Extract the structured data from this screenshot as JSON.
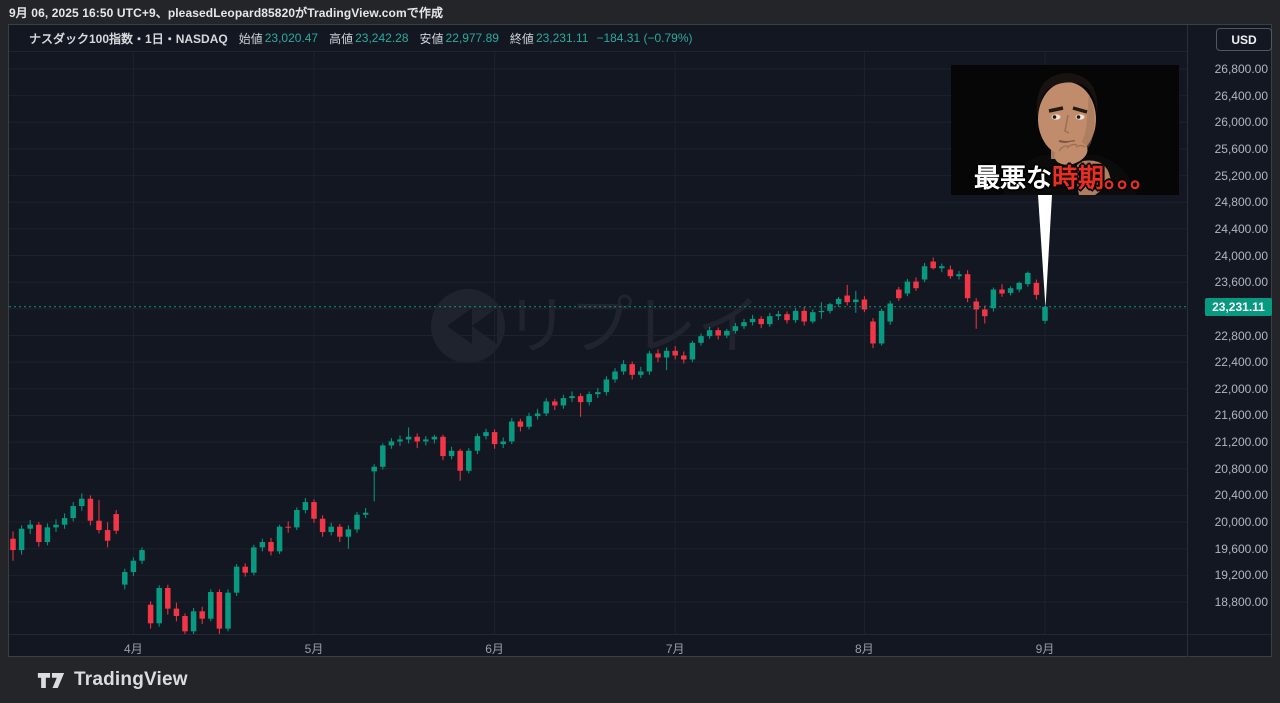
{
  "page": {
    "created_line": "9月 06, 2025 16:50 UTC+9、pleasedLeopard85820がTradingView.comで作成"
  },
  "legend": {
    "title": "ナスダック100指数・1日・NASDAQ",
    "ohlc": [
      {
        "label": "始値",
        "value": "23,020.47"
      },
      {
        "label": "高値",
        "value": "23,242.28"
      },
      {
        "label": "安値",
        "value": "22,977.89"
      },
      {
        "label": "終値",
        "value": "23,231.11"
      }
    ],
    "change": "−184.31 (−0.79%)"
  },
  "price_axis": {
    "currency": "USD",
    "last_price": "23,231.11",
    "ticks": [
      {
        "value": 26800,
        "label": "26,800.00"
      },
      {
        "value": 26400,
        "label": "26,400.00"
      },
      {
        "value": 26000,
        "label": "26,000.00"
      },
      {
        "value": 25600,
        "label": "25,600.00"
      },
      {
        "value": 25200,
        "label": "25,200.00"
      },
      {
        "value": 24800,
        "label": "24,800.00"
      },
      {
        "value": 24400,
        "label": "24,400.00"
      },
      {
        "value": 24000,
        "label": "24,000.00"
      },
      {
        "value": 23600,
        "label": "23,600.00"
      },
      {
        "value": 22800,
        "label": "22,800.00"
      },
      {
        "value": 22400,
        "label": "22,400.00"
      },
      {
        "value": 22000,
        "label": "22,000.00"
      },
      {
        "value": 21600,
        "label": "21,600.00"
      },
      {
        "value": 21200,
        "label": "21,200.00"
      },
      {
        "value": 20800,
        "label": "20,800.00"
      },
      {
        "value": 20400,
        "label": "20,400.00"
      },
      {
        "value": 20000,
        "label": "20,000.00"
      },
      {
        "value": 19600,
        "label": "19,600.00"
      },
      {
        "value": 19200,
        "label": "19,200.00"
      },
      {
        "value": 18800,
        "label": "18,800.00"
      }
    ]
  },
  "time_axis": {
    "months": [
      {
        "label": "4月",
        "index": 14
      },
      {
        "label": "5月",
        "index": 35
      },
      {
        "label": "6月",
        "index": 56
      },
      {
        "label": "7月",
        "index": 77
      },
      {
        "label": "8月",
        "index": 99
      },
      {
        "label": "9月",
        "index": 120
      }
    ]
  },
  "watermark": {
    "label": "リプレイ",
    "icon": "rewind-icon"
  },
  "annotation": {
    "caption_white": "最悪な",
    "caption_red": "時期。。。"
  },
  "footer": {
    "brand": "TradingView"
  },
  "colors": {
    "up": "#089981",
    "down": "#f23645",
    "chart_bg": "#131722",
    "page_bg": "#232529",
    "grid": "#1e222d",
    "axis_text": "#b2b5be",
    "value_text": "#2ba99a",
    "price_label_bg": "#089981",
    "price_line": "#089981",
    "caption_red": "#e92e23"
  },
  "chart_data": {
    "type": "candlestick",
    "title": "ナスダック100指数・1日・NASDAQ",
    "symbol": "ナスダック100指数",
    "interval": "1日",
    "exchange": "NASDAQ",
    "currency": "USD",
    "ohlc_last": {
      "open": 23020.47,
      "high": 23242.28,
      "low": 22977.89,
      "close": 23231.11,
      "change": -184.31,
      "change_pct": -0.79
    },
    "y_axis": {
      "min": 18800,
      "max": 26800,
      "step": 400
    },
    "x_axis_months": [
      "4月",
      "5月",
      "6月",
      "7月",
      "8月",
      "9月"
    ],
    "last_close": 23231.11,
    "legend_position": "top-left",
    "grid": true,
    "candles": [
      [
        19750,
        19860,
        19420,
        19580
      ],
      [
        19580,
        19950,
        19510,
        19900
      ],
      [
        19900,
        20030,
        19820,
        19960
      ],
      [
        19960,
        20000,
        19630,
        19700
      ],
      [
        19700,
        19980,
        19650,
        19920
      ],
      [
        19920,
        20040,
        19850,
        19960
      ],
      [
        19960,
        20130,
        19900,
        20060
      ],
      [
        20060,
        20300,
        20010,
        20240
      ],
      [
        20240,
        20430,
        20170,
        20350
      ],
      [
        20350,
        20400,
        19950,
        20020
      ],
      [
        20020,
        20330,
        19830,
        19880
      ],
      [
        19880,
        20000,
        19620,
        19720
      ],
      [
        20120,
        20180,
        19820,
        19870
      ],
      [
        19060,
        19300,
        18990,
        19250
      ],
      [
        19250,
        19470,
        19190,
        19420
      ],
      [
        19420,
        19620,
        19370,
        19580
      ],
      [
        18760,
        18810,
        18400,
        18480
      ],
      [
        18480,
        19050,
        18430,
        19010
      ],
      [
        19010,
        19060,
        18610,
        18700
      ],
      [
        18700,
        18790,
        18510,
        18590
      ],
      [
        18590,
        18630,
        18290,
        18360
      ],
      [
        18360,
        18710,
        18320,
        18660
      ],
      [
        18660,
        18730,
        18470,
        18550
      ],
      [
        18550,
        18990,
        18510,
        18950
      ],
      [
        18950,
        18990,
        18320,
        18400
      ],
      [
        18400,
        18990,
        18360,
        18940
      ],
      [
        18940,
        19370,
        18890,
        19330
      ],
      [
        19330,
        19380,
        19180,
        19240
      ],
      [
        19240,
        19660,
        19200,
        19620
      ],
      [
        19620,
        19750,
        19560,
        19700
      ],
      [
        19700,
        19760,
        19500,
        19560
      ],
      [
        19560,
        19960,
        19520,
        19930
      ],
      [
        19930,
        20010,
        19840,
        19920
      ],
      [
        19920,
        20220,
        19880,
        20180
      ],
      [
        20180,
        20360,
        20130,
        20300
      ],
      [
        20300,
        20340,
        19990,
        20050
      ],
      [
        20050,
        20100,
        19780,
        19850
      ],
      [
        19850,
        19990,
        19800,
        19930
      ],
      [
        19930,
        19970,
        19700,
        19780
      ],
      [
        19780,
        19950,
        19600,
        19890
      ],
      [
        19890,
        20150,
        19840,
        20110
      ],
      [
        20110,
        20210,
        20060,
        20140
      ],
      [
        20760,
        20870,
        20310,
        20830
      ],
      [
        20830,
        21180,
        20790,
        21150
      ],
      [
        21150,
        21260,
        21100,
        21210
      ],
      [
        21210,
        21300,
        21140,
        21240
      ],
      [
        21240,
        21420,
        21180,
        21280
      ],
      [
        21280,
        21330,
        21110,
        21210
      ],
      [
        21210,
        21290,
        21150,
        21240
      ],
      [
        21240,
        21310,
        21180,
        21280
      ],
      [
        21280,
        21310,
        20930,
        20990
      ],
      [
        20990,
        21130,
        20940,
        21070
      ],
      [
        21070,
        21100,
        20620,
        20770
      ],
      [
        20770,
        21110,
        20730,
        21070
      ],
      [
        21070,
        21330,
        21020,
        21290
      ],
      [
        21290,
        21400,
        21240,
        21350
      ],
      [
        21350,
        21390,
        21100,
        21170
      ],
      [
        21170,
        21270,
        21110,
        21210
      ],
      [
        21210,
        21560,
        21170,
        21510
      ],
      [
        21510,
        21550,
        21360,
        21430
      ],
      [
        21430,
        21640,
        21390,
        21590
      ],
      [
        21590,
        21700,
        21540,
        21630
      ],
      [
        21630,
        21860,
        21590,
        21810
      ],
      [
        21810,
        21850,
        21680,
        21750
      ],
      [
        21750,
        21910,
        21700,
        21860
      ],
      [
        21860,
        21960,
        21800,
        21890
      ],
      [
        21890,
        21930,
        21580,
        21800
      ],
      [
        21800,
        21960,
        21750,
        21920
      ],
      [
        21920,
        22010,
        21860,
        21950
      ],
      [
        21950,
        22190,
        21900,
        22140
      ],
      [
        22140,
        22310,
        22090,
        22260
      ],
      [
        22260,
        22430,
        22210,
        22370
      ],
      [
        22370,
        22410,
        22140,
        22210
      ],
      [
        22210,
        22330,
        22160,
        22260
      ],
      [
        22260,
        22570,
        22210,
        22530
      ],
      [
        22530,
        22590,
        22400,
        22470
      ],
      [
        22470,
        22620,
        22280,
        22570
      ],
      [
        22570,
        22640,
        22440,
        22500
      ],
      [
        22500,
        22560,
        22380,
        22440
      ],
      [
        22440,
        22720,
        22400,
        22690
      ],
      [
        22690,
        22830,
        22650,
        22790
      ],
      [
        22790,
        22930,
        22750,
        22880
      ],
      [
        22880,
        22920,
        22740,
        22800
      ],
      [
        22800,
        22900,
        22760,
        22870
      ],
      [
        22870,
        22990,
        22830,
        22940
      ],
      [
        22940,
        23050,
        22900,
        23000
      ],
      [
        23000,
        23110,
        22950,
        23050
      ],
      [
        23050,
        23090,
        22910,
        22970
      ],
      [
        22970,
        23140,
        22930,
        23090
      ],
      [
        23090,
        23170,
        23030,
        23120
      ],
      [
        23120,
        23160,
        22980,
        23030
      ],
      [
        23030,
        23210,
        22990,
        23170
      ],
      [
        23170,
        23230,
        22950,
        23010
      ],
      [
        23010,
        23190,
        22980,
        23150
      ],
      [
        23150,
        23300,
        23050,
        23170
      ],
      [
        23170,
        23290,
        23130,
        23270
      ],
      [
        23270,
        23380,
        23230,
        23350
      ],
      [
        23400,
        23560,
        23250,
        23300
      ],
      [
        23300,
        23470,
        23140,
        23340
      ],
      [
        23340,
        23390,
        23150,
        23190
      ],
      [
        23010,
        23060,
        22610,
        22680
      ],
      [
        22680,
        23200,
        22650,
        23170
      ],
      [
        23010,
        23320,
        22960,
        23280
      ],
      [
        23490,
        23530,
        23320,
        23360
      ],
      [
        23430,
        23650,
        23390,
        23610
      ],
      [
        23610,
        23670,
        23470,
        23510
      ],
      [
        23640,
        23890,
        23600,
        23840
      ],
      [
        23910,
        23970,
        23790,
        23810
      ],
      [
        23810,
        23880,
        23750,
        23840
      ],
      [
        23790,
        23850,
        23650,
        23690
      ],
      [
        23690,
        23770,
        23640,
        23720
      ],
      [
        23720,
        23780,
        23300,
        23360
      ],
      [
        23310,
        23360,
        22900,
        23190
      ],
      [
        23190,
        23250,
        22980,
        23090
      ],
      [
        23210,
        23520,
        23160,
        23490
      ],
      [
        23490,
        23570,
        23380,
        23430
      ],
      [
        23440,
        23540,
        23400,
        23510
      ],
      [
        23490,
        23610,
        23450,
        23590
      ],
      [
        23570,
        23760,
        23530,
        23740
      ],
      [
        23590,
        23640,
        23340,
        23410
      ],
      [
        23020.47,
        23242.28,
        22977.89,
        23231.11
      ]
    ]
  }
}
